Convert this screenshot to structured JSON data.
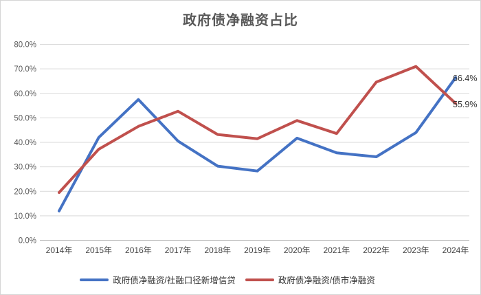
{
  "frame": {
    "border_color": "#d5d5d5",
    "background": "#ffffff"
  },
  "chart_data": {
    "type": "line",
    "title": "政府债净融资占比",
    "categories": [
      "2014年",
      "2015年",
      "2016年",
      "2017年",
      "2018年",
      "2019年",
      "2020年",
      "2021年",
      "2022年",
      "2023年",
      "2024年"
    ],
    "series": [
      {
        "name": "政府债净融资/社融口径新增信贷",
        "color": "#4472C4",
        "values": [
          12.0,
          42.0,
          57.5,
          40.5,
          30.3,
          28.3,
          41.7,
          35.7,
          34.1,
          44.0,
          66.4
        ],
        "end_label": "66.4%"
      },
      {
        "name": "政府债净融资/债市净融资",
        "color": "#C0504D",
        "values": [
          19.5,
          37.2,
          46.5,
          52.7,
          43.2,
          41.5,
          48.9,
          43.6,
          64.6,
          71.0,
          55.9
        ],
        "end_label": "55.9%"
      }
    ],
    "xlabel": "",
    "ylabel": "",
    "ylim": [
      0,
      80
    ],
    "y_step": 10,
    "y_tick_labels": [
      "0.0%",
      "10.0%",
      "20.0%",
      "30.0%",
      "40.0%",
      "50.0%",
      "60.0%",
      "70.0%",
      "80.0%"
    ],
    "grid": true,
    "legend_position": "bottom",
    "colors": {
      "gridline": "#d9d9d9",
      "axis_line": "#bfbfbf",
      "y_tick_text": "#595959",
      "x_tick_text": "#444444",
      "title_text": "#595959",
      "data_label_text": "#333333"
    }
  }
}
